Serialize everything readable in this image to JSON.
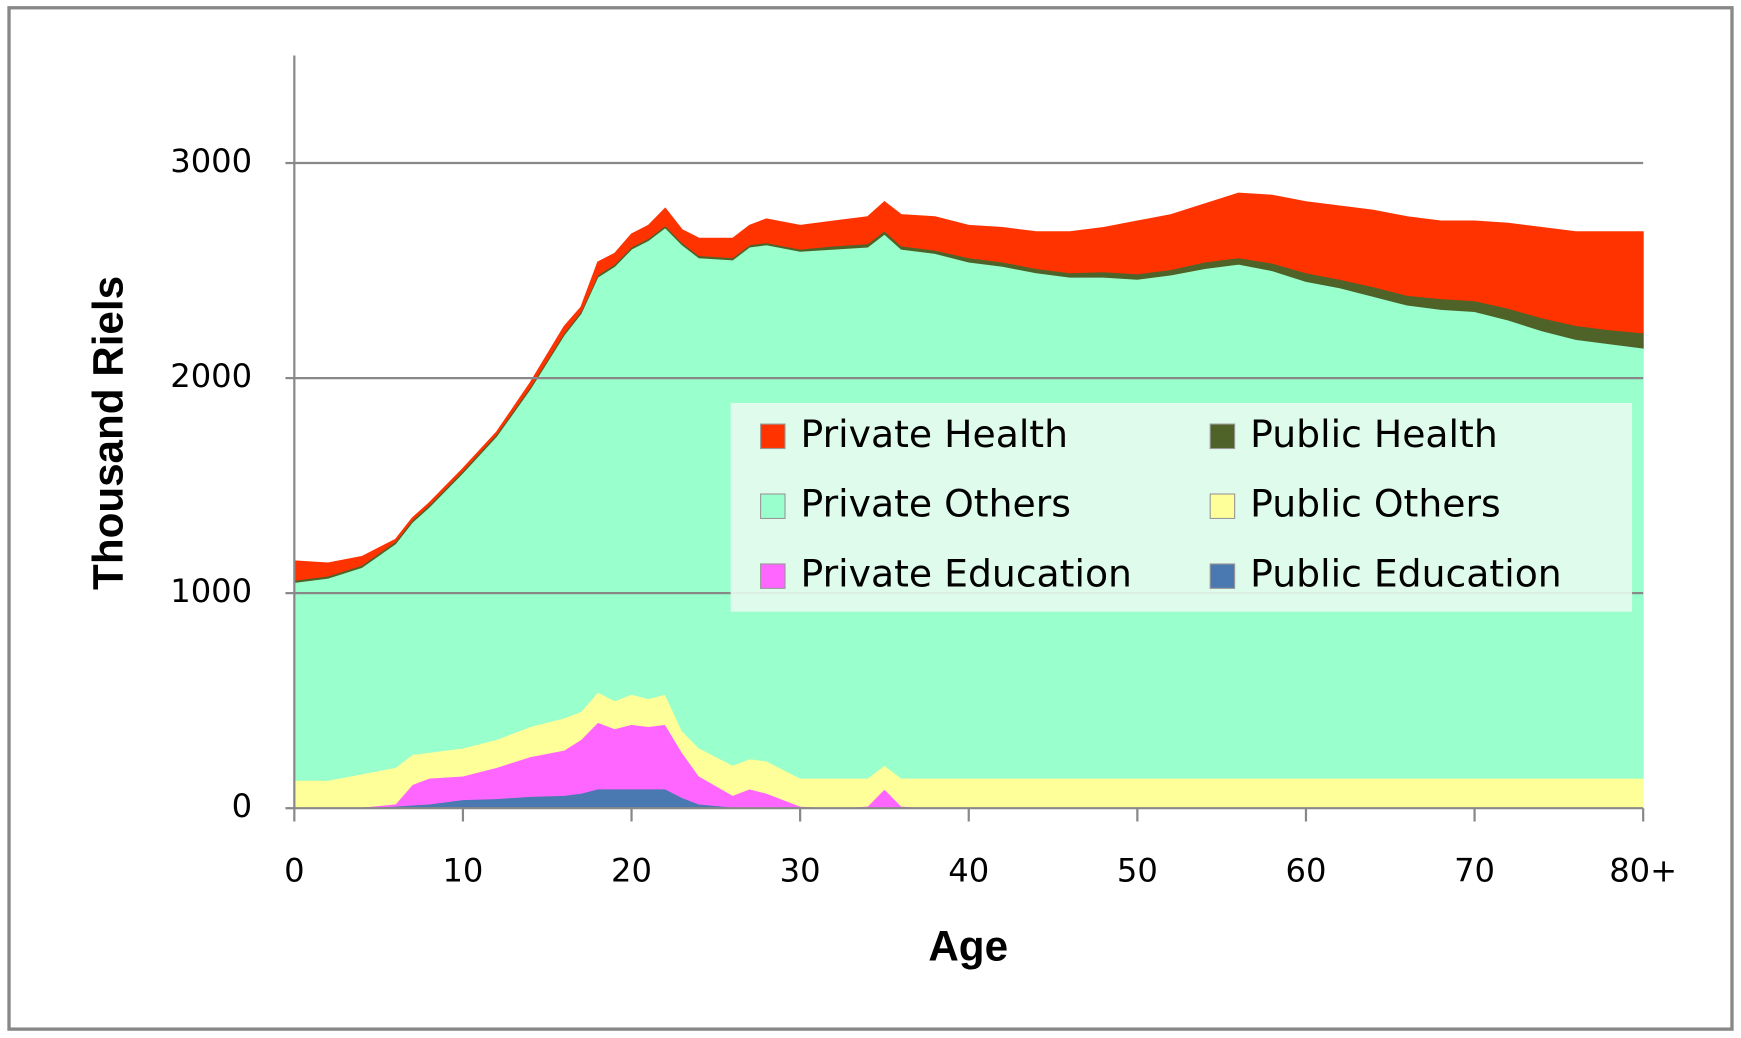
{
  "chart_data": {
    "type": "stacked-area",
    "x_label": "Age",
    "y_label": "Thousand Riels",
    "x": [
      0,
      2,
      4,
      6,
      7,
      8,
      10,
      12,
      14,
      16,
      17,
      18,
      19,
      20,
      21,
      22,
      23,
      24,
      26,
      27,
      28,
      30,
      32,
      34,
      35,
      36,
      38,
      40,
      42,
      44,
      46,
      48,
      50,
      52,
      54,
      56,
      58,
      60,
      62,
      64,
      66,
      68,
      70,
      72,
      74,
      76,
      78,
      80
    ],
    "xlim": [
      0,
      80
    ],
    "xticks": [
      0,
      10,
      20,
      30,
      40,
      50,
      60,
      70,
      {
        "value": 80,
        "label": "80+"
      }
    ],
    "ylim": [
      0,
      3500
    ],
    "yticks": [
      0,
      1000,
      2000,
      3000
    ],
    "grid": true,
    "series": [
      {
        "name": "Public Education",
        "color": "#4a78b0",
        "values": [
          0,
          0,
          0,
          10,
          15,
          20,
          40,
          45,
          55,
          60,
          70,
          90,
          90,
          90,
          90,
          90,
          50,
          20,
          5,
          0,
          0,
          0,
          0,
          0,
          0,
          0,
          0,
          0,
          0,
          0,
          0,
          0,
          0,
          0,
          0,
          0,
          0,
          0,
          0,
          0,
          0,
          0,
          0,
          0,
          0,
          0,
          0,
          0
        ]
      },
      {
        "name": "Private Education",
        "color": "#ff66ff",
        "values": [
          0,
          0,
          5,
          10,
          95,
          120,
          110,
          145,
          185,
          210,
          250,
          310,
          280,
          300,
          290,
          300,
          210,
          130,
          55,
          90,
          70,
          10,
          0,
          10,
          90,
          10,
          0,
          0,
          0,
          0,
          0,
          0,
          0,
          0,
          0,
          0,
          0,
          0,
          0,
          0,
          0,
          0,
          0,
          0,
          0,
          0,
          0,
          0
        ]
      },
      {
        "name": "Public Others",
        "color": "#ffff99",
        "values": [
          130,
          130,
          155,
          170,
          140,
          120,
          130,
          130,
          140,
          150,
          130,
          140,
          130,
          140,
          130,
          140,
          100,
          130,
          140,
          140,
          150,
          130,
          140,
          130,
          110,
          130,
          140,
          140,
          140,
          140,
          140,
          140,
          140,
          140,
          140,
          140,
          140,
          140,
          140,
          140,
          140,
          140,
          140,
          140,
          140,
          140,
          140,
          140
        ]
      },
      {
        "name": "Private Others",
        "color": "#99ffcc",
        "values": [
          920,
          940,
          960,
          1040,
          1080,
          1140,
          1280,
          1410,
          1570,
          1780,
          1850,
          1930,
          2020,
          2070,
          2130,
          2170,
          2260,
          2280,
          2350,
          2380,
          2400,
          2450,
          2460,
          2470,
          2470,
          2460,
          2440,
          2400,
          2380,
          2350,
          2330,
          2330,
          2320,
          2340,
          2370,
          2390,
          2360,
          2310,
          2280,
          2240,
          2200,
          2180,
          2170,
          2130,
          2080,
          2040,
          2020,
          2000
        ]
      },
      {
        "name": "Public Health",
        "color": "#4f6228",
        "values": [
          10,
          10,
          10,
          10,
          10,
          10,
          10,
          10,
          10,
          10,
          10,
          10,
          10,
          10,
          10,
          10,
          10,
          10,
          10,
          10,
          10,
          10,
          15,
          15,
          15,
          15,
          15,
          20,
          20,
          20,
          20,
          25,
          25,
          25,
          30,
          30,
          35,
          40,
          40,
          45,
          45,
          50,
          50,
          55,
          60,
          65,
          65,
          70
        ]
      },
      {
        "name": "Private Health",
        "color": "#ff3300",
        "values": [
          90,
          60,
          40,
          10,
          10,
          10,
          10,
          10,
          20,
          30,
          20,
          60,
          50,
          60,
          60,
          80,
          60,
          80,
          90,
          90,
          110,
          110,
          115,
          125,
          135,
          145,
          155,
          150,
          160,
          170,
          190,
          205,
          245,
          255,
          270,
          300,
          315,
          330,
          340,
          355,
          365,
          360,
          370,
          395,
          420,
          435,
          455,
          470
        ]
      }
    ]
  }
}
